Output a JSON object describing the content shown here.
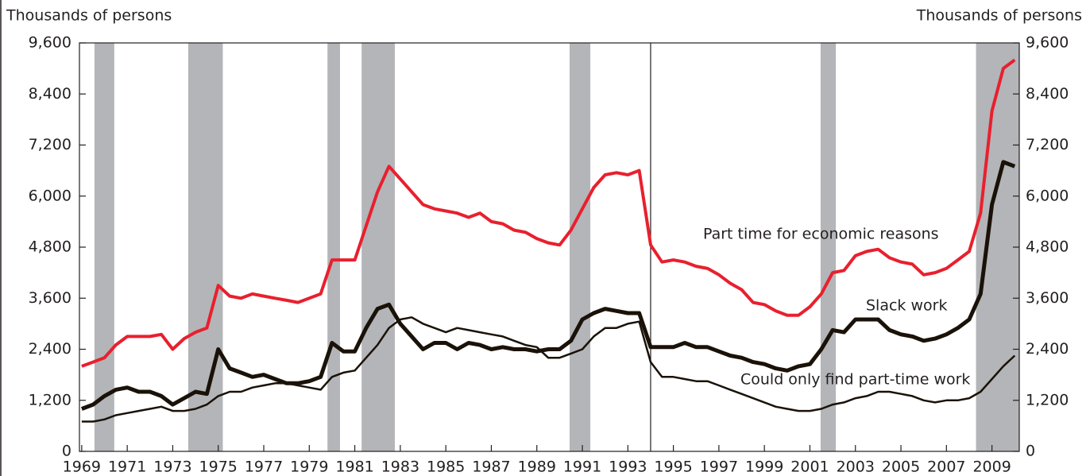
{
  "chart_data": {
    "type": "line",
    "y_label": "Thousands of persons",
    "y2_label": "Thousands of persons",
    "xlim": [
      1968.9,
      2010.2
    ],
    "xticks": [
      1969,
      1971,
      1973,
      1975,
      1977,
      1979,
      1981,
      1983,
      1985,
      1987,
      1989,
      1991,
      1993,
      1995,
      1997,
      1999,
      2001,
      2003,
      2005,
      2007,
      2009
    ],
    "ylim": [
      0,
      9600
    ],
    "yticks": [
      0,
      {
        "value": 1200,
        "label": "1,200"
      },
      {
        "value": 2400,
        "label": "2,400"
      },
      {
        "value": 3600,
        "label": "3,600"
      },
      {
        "value": 4800,
        "label": "4,800"
      },
      {
        "value": 6000,
        "label": "6,000"
      },
      {
        "value": 7200,
        "label": "7,200"
      },
      {
        "value": 8400,
        "label": "8,400"
      },
      {
        "value": 9600,
        "label": "9,600"
      }
    ],
    "recessions": [
      [
        1969.56,
        1970.43
      ],
      [
        1973.68,
        1975.2
      ],
      [
        1979.8,
        1980.35
      ],
      [
        1981.3,
        1982.76
      ],
      [
        1990.44,
        1991.35
      ],
      [
        2001.47,
        2002.14
      ],
      [
        2008.3,
        2010.2
      ]
    ],
    "recession_color": "#b3b5b8",
    "break_x": 1994.0,
    "x": [
      1969,
      1969.5,
      1970,
      1970.5,
      1971,
      1971.5,
      1972,
      1972.5,
      1973,
      1973.5,
      1974,
      1974.5,
      1975,
      1975.5,
      1976,
      1976.5,
      1977,
      1977.5,
      1978,
      1978.5,
      1979,
      1979.5,
      1980,
      1980.5,
      1981,
      1981.5,
      1982,
      1982.5,
      1983,
      1983.5,
      1984,
      1984.5,
      1985,
      1985.5,
      1986,
      1986.5,
      1987,
      1987.5,
      1988,
      1988.5,
      1989,
      1989.5,
      1990,
      1990.5,
      1991,
      1991.5,
      1992,
      1992.5,
      1993,
      1993.5,
      1994,
      1994.5,
      1995,
      1995.5,
      1996,
      1996.5,
      1997,
      1997.5,
      1998,
      1998.5,
      1999,
      1999.5,
      2000,
      2000.5,
      2001,
      2001.5,
      2002,
      2002.5,
      2003,
      2003.5,
      2004,
      2004.5,
      2005,
      2005.5,
      2006,
      2006.5,
      2007,
      2007.5,
      2008,
      2008.5,
      2009,
      2009.5,
      2010
    ],
    "series": [
      {
        "name": "Part time for economic reasons",
        "color": "#e8202e",
        "width": 4,
        "values": [
          2000,
          2100,
          2200,
          2500,
          2700,
          2700,
          2700,
          2750,
          2400,
          2650,
          2800,
          2900,
          3900,
          3650,
          3600,
          3700,
          3650,
          3600,
          3550,
          3500,
          3600,
          3700,
          4500,
          4500,
          4500,
          5300,
          6100,
          6700,
          6400,
          6100,
          5800,
          5700,
          5650,
          5600,
          5500,
          5600,
          5400,
          5350,
          5200,
          5150,
          5000,
          4900,
          4850,
          5200,
          5700,
          6200,
          6500,
          6550,
          6500,
          6600,
          4850,
          4450,
          4500,
          4450,
          4350,
          4300,
          4150,
          3950,
          3800,
          3500,
          3450,
          3300,
          3200,
          3200,
          3400,
          3700,
          4200,
          4250,
          4600,
          4700,
          4750,
          4550,
          4450,
          4400,
          4150,
          4200,
          4300,
          4500,
          4700,
          5600,
          8000,
          9000,
          9200
        ]
      },
      {
        "name": "Slack work",
        "color": "#1a1208",
        "width": 5,
        "values": [
          1000,
          1100,
          1300,
          1450,
          1500,
          1400,
          1400,
          1300,
          1100,
          1250,
          1400,
          1350,
          2400,
          1950,
          1850,
          1750,
          1800,
          1700,
          1600,
          1600,
          1650,
          1750,
          2550,
          2350,
          2350,
          2900,
          3350,
          3450,
          3000,
          2700,
          2400,
          2550,
          2550,
          2400,
          2550,
          2500,
          2400,
          2450,
          2400,
          2400,
          2350,
          2400,
          2400,
          2600,
          3100,
          3250,
          3350,
          3300,
          3250,
          3250,
          2450,
          2450,
          2450,
          2550,
          2450,
          2450,
          2350,
          2250,
          2200,
          2100,
          2050,
          1950,
          1900,
          2000,
          2050,
          2400,
          2850,
          2800,
          3100,
          3100,
          3100,
          2850,
          2750,
          2700,
          2600,
          2650,
          2750,
          2900,
          3100,
          3700,
          5800,
          6800,
          6700
        ]
      },
      {
        "name": "Could only find part-time work",
        "color": "#1a1208",
        "width": 2.5,
        "values": [
          700,
          700,
          750,
          850,
          900,
          950,
          1000,
          1050,
          950,
          950,
          1000,
          1100,
          1300,
          1400,
          1400,
          1500,
          1550,
          1600,
          1600,
          1550,
          1500,
          1450,
          1750,
          1850,
          1900,
          2200,
          2500,
          2900,
          3100,
          3150,
          3000,
          2900,
          2800,
          2900,
          2850,
          2800,
          2750,
          2700,
          2600,
          2500,
          2450,
          2200,
          2200,
          2300,
          2400,
          2700,
          2900,
          2900,
          3000,
          3050,
          2100,
          1750,
          1750,
          1700,
          1650,
          1650,
          1550,
          1450,
          1350,
          1250,
          1150,
          1050,
          1000,
          950,
          950,
          1000,
          1100,
          1150,
          1250,
          1300,
          1400,
          1400,
          1350,
          1300,
          1200,
          1150,
          1200,
          1200,
          1250,
          1400,
          1700,
          2000,
          2250
        ]
      }
    ]
  }
}
